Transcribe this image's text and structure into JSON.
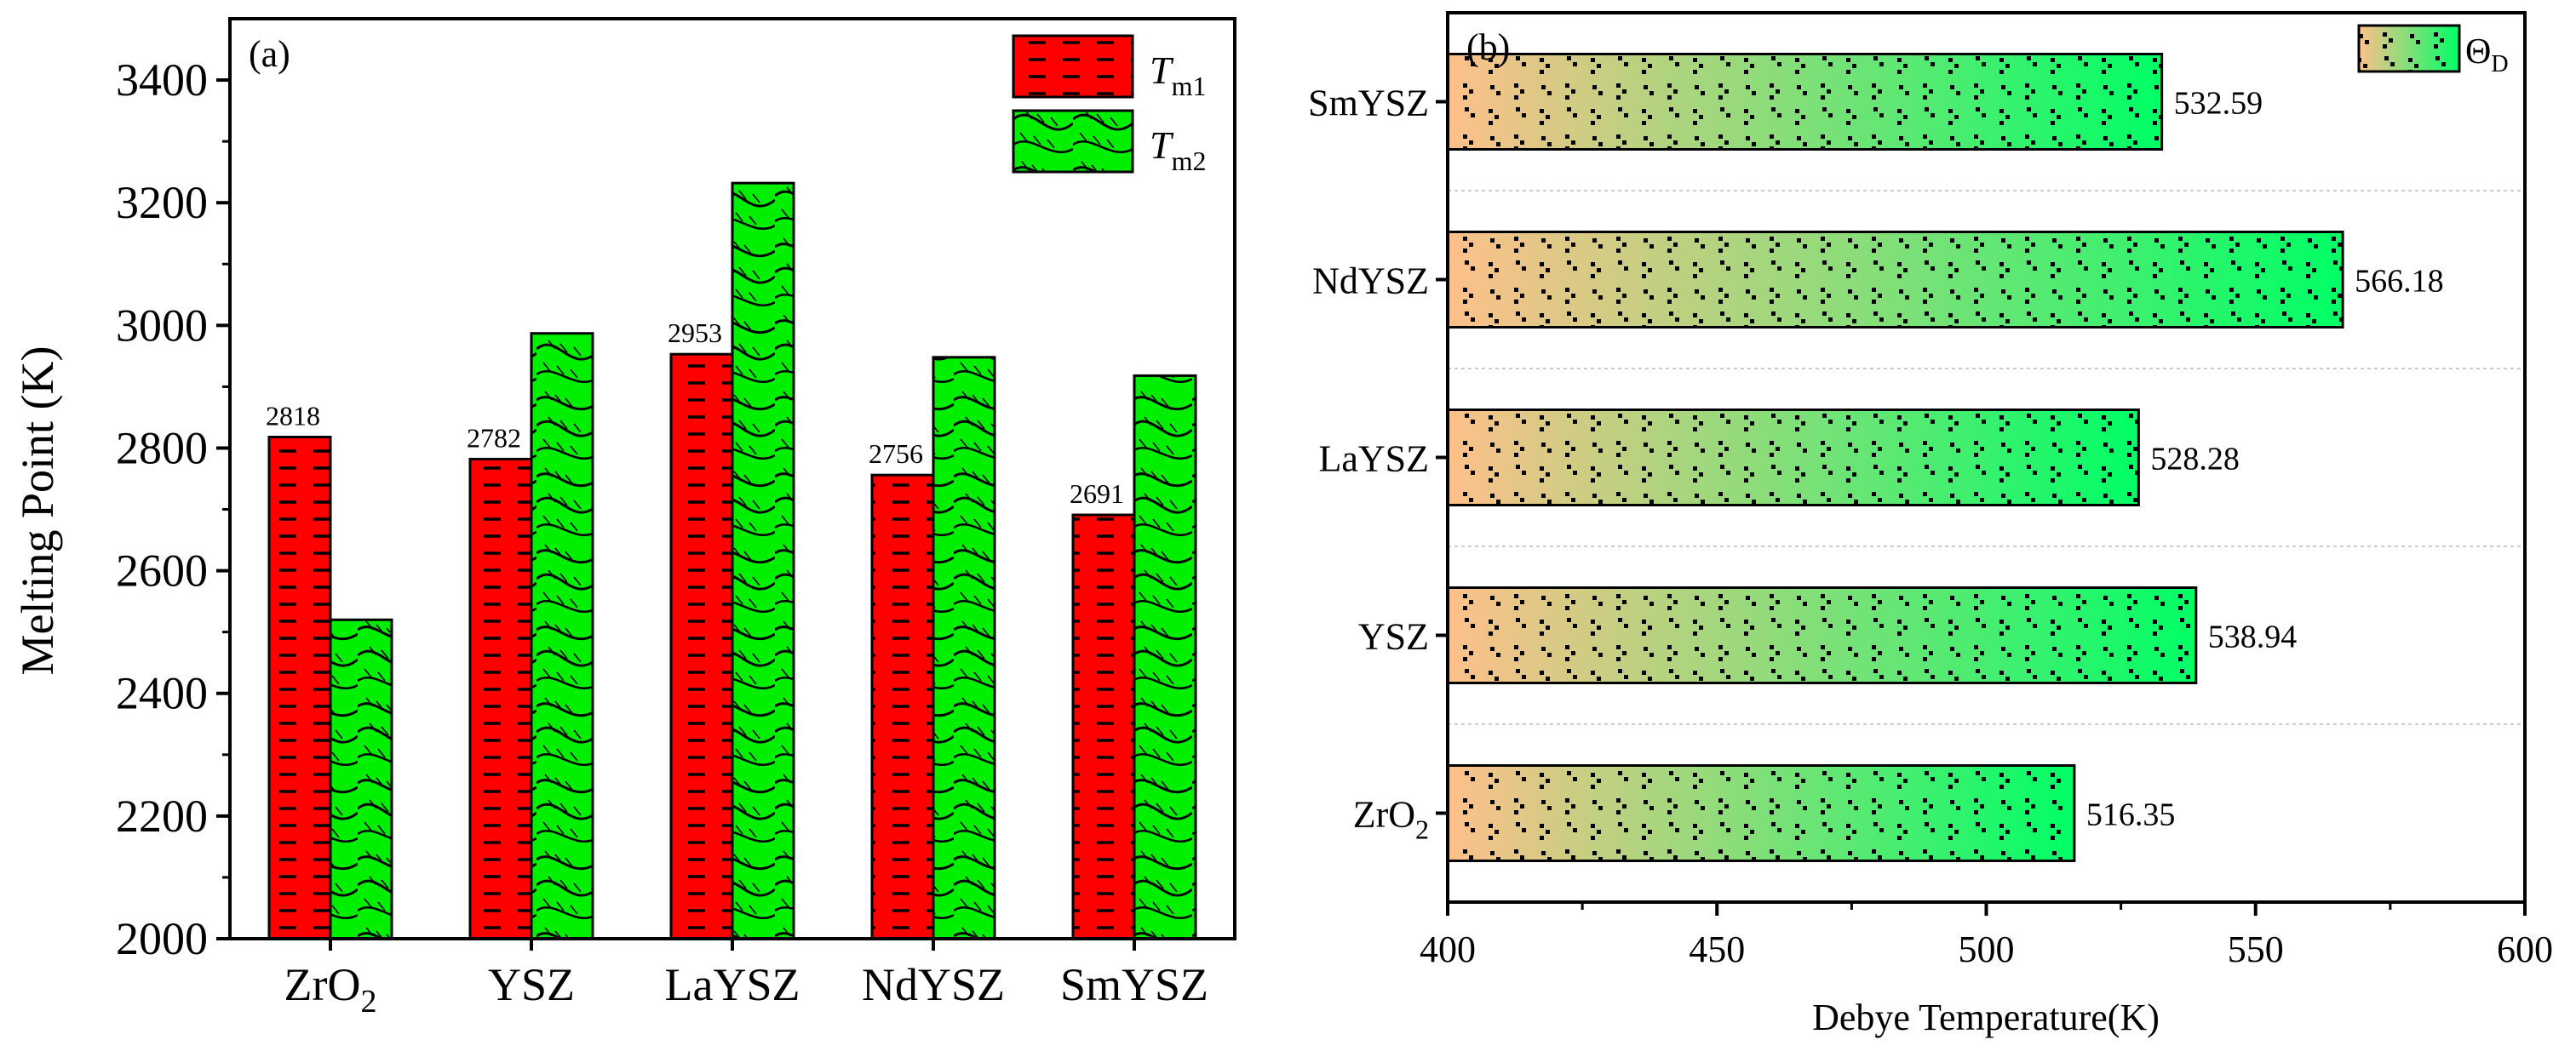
{
  "chart_data": [
    {
      "type": "bar",
      "panel_label": "(a)",
      "categories": [
        "ZrO",
        "YSZ",
        "LaYSZ",
        "NdYSZ",
        "SmYSZ"
      ],
      "category_subscripts": [
        "2",
        "",
        "",
        "",
        ""
      ],
      "series": [
        {
          "name": "T",
          "subscript": "m1",
          "values": [
            2818,
            2782,
            2953,
            2756,
            2691
          ],
          "color": "#ff0000",
          "pattern": "dashes"
        },
        {
          "name": "T",
          "subscript": "m2",
          "values": [
            2520,
            2987,
            3232,
            2948,
            2918
          ],
          "color": "#00ee00",
          "pattern": "waves"
        }
      ],
      "data_labels": [
        "2818",
        "2782",
        "2953",
        "2756",
        "2691"
      ],
      "ylabel": "Melting Point (K)",
      "xlabel": "",
      "ylim": [
        2000,
        3500
      ],
      "yticks": [
        "2000",
        "2200",
        "2400",
        "2600",
        "2800",
        "3000",
        "3200",
        "3400"
      ],
      "legend_position": "top-right"
    },
    {
      "type": "bar",
      "orientation": "horizontal",
      "panel_label": "(b)",
      "categories": [
        "SmYSZ",
        "NdYSZ",
        "LaYSZ",
        "YSZ",
        "ZrO"
      ],
      "category_subscripts": [
        "",
        "",
        "",
        "",
        "2"
      ],
      "series": [
        {
          "name": "Θ",
          "subscript": "D",
          "values": [
            532.59,
            566.18,
            528.28,
            538.94,
            516.35
          ],
          "gradient": [
            "#ffc08a",
            "#00ff66"
          ],
          "pattern": "dots"
        }
      ],
      "data_labels": [
        "532.59",
        "566.18",
        "528.28",
        "538.94",
        "516.35"
      ],
      "xlabel": "Debye Temperature(K)",
      "ylabel": "",
      "xlim": [
        400,
        600
      ],
      "xticks": [
        "400",
        "450",
        "500",
        "550",
        "600"
      ],
      "grid": true,
      "legend_position": "top-right"
    }
  ]
}
